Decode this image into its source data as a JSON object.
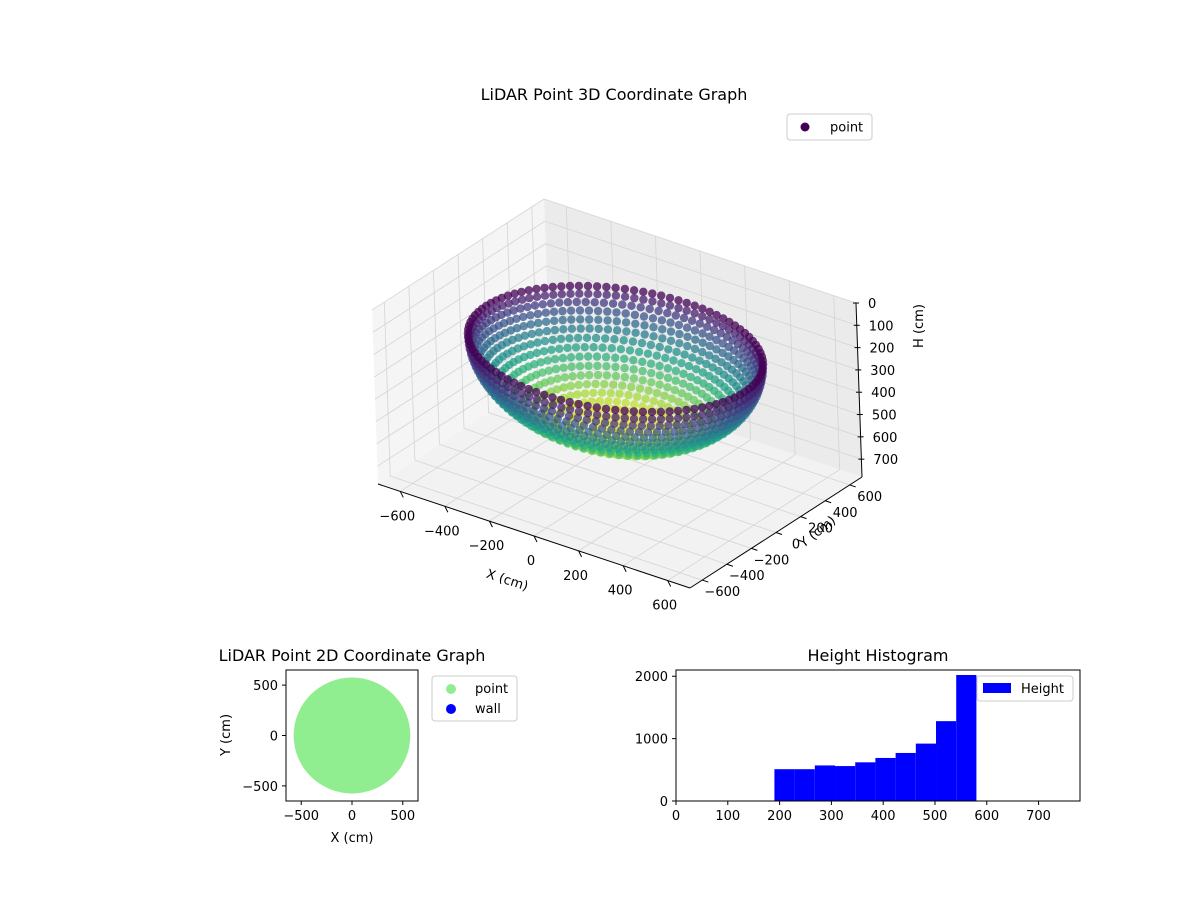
{
  "chart_data": [
    {
      "type": "scatter",
      "projection": "3d",
      "title": "LiDAR Point 3D Coordinate Graph",
      "xlabel": "X (cm)",
      "ylabel": "Y (cm)",
      "zlabel": "H (cm)",
      "xlim": [
        -700,
        700
      ],
      "ylim": [
        -700,
        700
      ],
      "zlim": [
        780,
        0
      ],
      "z_inverted": true,
      "x_ticks": [
        -600,
        -400,
        -200,
        0,
        200,
        400,
        600
      ],
      "y_ticks": [
        -600,
        -400,
        -200,
        0,
        200,
        400,
        600
      ],
      "z_ticks": [
        0,
        100,
        200,
        300,
        400,
        500,
        600,
        700
      ],
      "grid": true,
      "legend": {
        "position": "top-right",
        "entries": [
          {
            "label": "point",
            "color": "#440154"
          }
        ]
      },
      "colormap": "viridis",
      "surface": {
        "shape": "hemisphere",
        "radius": 580,
        "rim_height": 190,
        "bottom_height": 580
      }
    },
    {
      "type": "scatter",
      "title": "LiDAR Point 2D Coordinate Graph",
      "xlabel": "X (cm)",
      "ylabel": "Y (cm)",
      "xlim": [
        -650,
        650
      ],
      "ylim": [
        -650,
        650
      ],
      "x_ticks": [
        -500,
        0,
        500
      ],
      "y_ticks": [
        -500,
        0,
        500
      ],
      "legend": {
        "position": "outside-right",
        "entries": [
          {
            "label": "point",
            "color": "#90ee90"
          },
          {
            "label": "wall",
            "color": "#0000ff"
          }
        ]
      },
      "series": [
        {
          "name": "point",
          "color": "#90ee90",
          "shape": "filled-disk",
          "radius": 575
        },
        {
          "name": "wall",
          "color": "#0000ff",
          "points": []
        }
      ]
    },
    {
      "type": "bar",
      "subtype": "histogram",
      "title": "Height Histogram",
      "xlim": [
        0,
        780
      ],
      "ylim": [
        0,
        2100
      ],
      "x_ticks": [
        0,
        100,
        200,
        300,
        400,
        500,
        600,
        700
      ],
      "y_ticks": [
        0,
        1000,
        2000
      ],
      "legend": {
        "position": "top-right",
        "entries": [
          {
            "label": "Height",
            "color": "#0000ff"
          }
        ]
      },
      "series": [
        {
          "name": "Height",
          "color": "#0000ff",
          "bins": [
            {
              "x0": 190,
              "x1": 229,
              "count": 510
            },
            {
              "x0": 229,
              "x1": 268,
              "count": 510
            },
            {
              "x0": 268,
              "x1": 307,
              "count": 570
            },
            {
              "x0": 307,
              "x1": 346,
              "count": 560
            },
            {
              "x0": 346,
              "x1": 385,
              "count": 620
            },
            {
              "x0": 385,
              "x1": 424,
              "count": 690
            },
            {
              "x0": 424,
              "x1": 463,
              "count": 770
            },
            {
              "x0": 463,
              "x1": 502,
              "count": 920
            },
            {
              "x0": 502,
              "x1": 541,
              "count": 1280
            },
            {
              "x0": 541,
              "x1": 580,
              "count": 2020
            }
          ]
        }
      ]
    }
  ]
}
